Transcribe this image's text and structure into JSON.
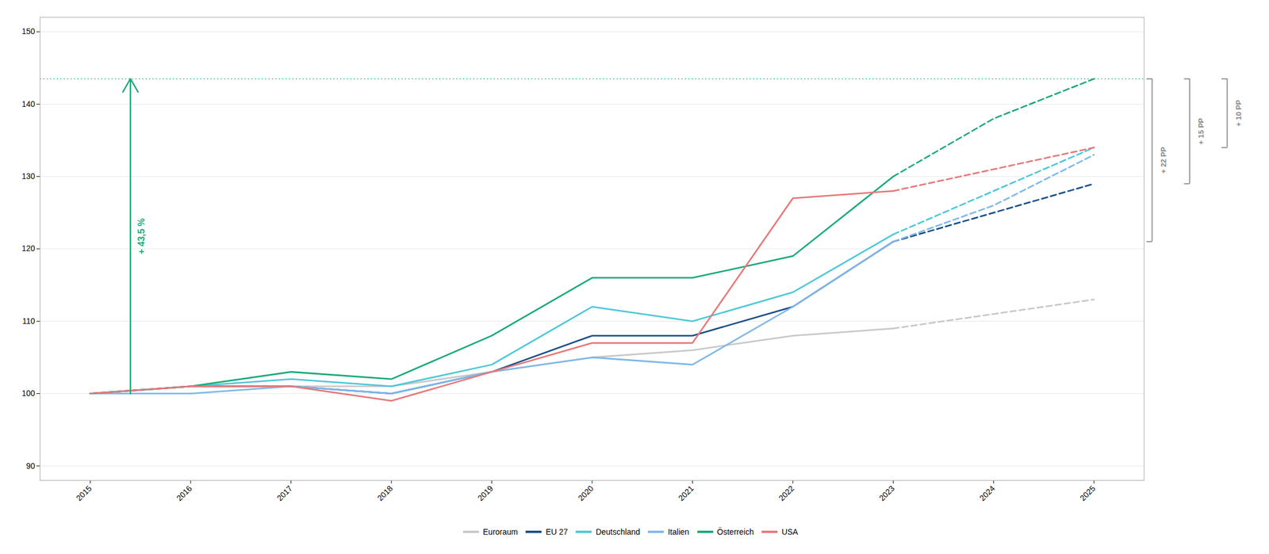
{
  "chart_data": {
    "type": "line",
    "x": [
      2015,
      2016,
      2017,
      2018,
      2019,
      2020,
      2021,
      2022,
      2023,
      2024,
      2025
    ],
    "series": [
      {
        "name": "Euroraum",
        "color": "#c8c8c8",
        "line_style": "solid",
        "values": [
          100,
          101,
          101,
          101,
          103,
          105,
          106,
          108,
          109,
          null,
          null
        ]
      },
      {
        "name": "EU 27",
        "color": "#1a4f8a",
        "line_style": "solid",
        "values": [
          100,
          101,
          101,
          100,
          103,
          108,
          108,
          112,
          121,
          null,
          null
        ]
      },
      {
        "name": "Deutschland",
        "color": "#4dc8d8",
        "line_style": "solid",
        "values": [
          100,
          101,
          102,
          101,
          104,
          112,
          110,
          114,
          122,
          null,
          null
        ]
      },
      {
        "name": "Italien",
        "color": "#7fb8e8",
        "line_style": "solid",
        "values": [
          100,
          100,
          101,
          100,
          103,
          105,
          104,
          112,
          121,
          null,
          null
        ]
      },
      {
        "name": "Österreich",
        "color": "#1aaa78",
        "line_style": "solid",
        "values": [
          100,
          101,
          103,
          102,
          108,
          116,
          116,
          119,
          130,
          null,
          null
        ]
      },
      {
        "name": "USA",
        "color": "#e87878",
        "line_style": "solid",
        "values": [
          100,
          101,
          101,
          99,
          103,
          107,
          107,
          127,
          128,
          null,
          null
        ]
      },
      {
        "name": "Euroraum",
        "color": "#c8c8c8",
        "line_style": "dashed",
        "values": [
          null,
          null,
          null,
          null,
          null,
          null,
          null,
          null,
          109,
          111,
          113
        ]
      },
      {
        "name": "EU 27",
        "color": "#1a4f8a",
        "line_style": "dashed",
        "values": [
          null,
          null,
          null,
          null,
          null,
          null,
          null,
          null,
          121,
          125,
          129
        ]
      },
      {
        "name": "Deutschland",
        "color": "#4dc8d8",
        "line_style": "dashed",
        "values": [
          null,
          null,
          null,
          null,
          null,
          null,
          null,
          null,
          122,
          128,
          134
        ]
      },
      {
        "name": "Italien",
        "color": "#7fb8e8",
        "line_style": "dashed",
        "values": [
          null,
          null,
          null,
          null,
          null,
          null,
          null,
          null,
          121,
          126,
          133
        ]
      },
      {
        "name": "Österreich",
        "color": "#1aaa78",
        "line_style": "dashed",
        "values": [
          null,
          null,
          null,
          null,
          null,
          null,
          null,
          null,
          130,
          138,
          143.5
        ]
      },
      {
        "name": "USA",
        "color": "#e87878",
        "line_style": "dashed",
        "values": [
          null,
          null,
          null,
          null,
          null,
          null,
          null,
          null,
          128,
          131,
          134
        ]
      }
    ],
    "xlim": [
      2014.5,
      2025.5
    ],
    "xticks": [
      2015,
      2016,
      2017,
      2018,
      2019,
      2020,
      2021,
      2022,
      2023,
      2024,
      2025
    ],
    "ylim": [
      88,
      152
    ],
    "yticks": [
      90,
      100,
      110,
      120,
      130,
      140,
      150
    ],
    "grid": true,
    "legend": "bottom",
    "reference_lines": [
      {
        "y": 143.5,
        "color": "#1aaa78",
        "line_style": "dotted"
      }
    ],
    "annotations": [
      {
        "type": "arrow",
        "text": "+ 43,5 %",
        "y_from": 100,
        "y_to": 143.5,
        "color": "#1aaa78"
      },
      {
        "type": "bracket",
        "text": "+ 22 PP",
        "y_from": 121,
        "y_to": 143.5,
        "color": "#888888"
      },
      {
        "type": "bracket",
        "text": "+ 15 PP",
        "y_from": 129,
        "y_to": 143.5,
        "color": "#888888"
      },
      {
        "type": "bracket",
        "text": "+ 10 PP",
        "y_from": 134,
        "y_to": 143.5,
        "color": "#888888"
      }
    ]
  }
}
